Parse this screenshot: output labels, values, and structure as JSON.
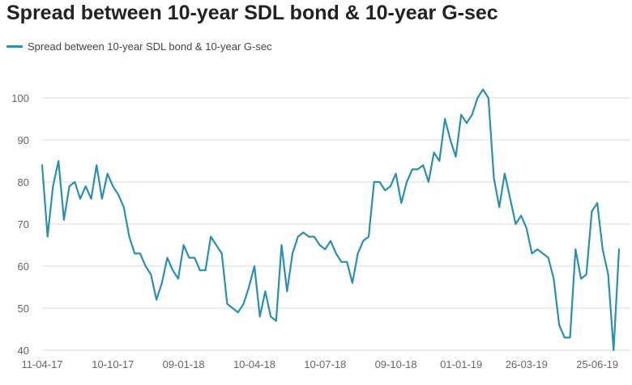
{
  "colors": {
    "series": "#2a8fb0",
    "grid": "#d9d9d9",
    "text": "#222222",
    "tick_text": "#666666"
  },
  "chart_data": {
    "type": "line",
    "title": "Spread between 10-year SDL bond & 10-year G-sec",
    "xlabel": "",
    "ylabel": "",
    "ylim": [
      40,
      100
    ],
    "yticks": [
      40,
      50,
      60,
      70,
      80,
      90,
      100
    ],
    "grid": true,
    "legend": "top-left",
    "x_tick_labels": [
      {
        "label": "11-04-17",
        "index": 0
      },
      {
        "label": "10-10-17",
        "index": 13
      },
      {
        "label": "09-01-18",
        "index": 26
      },
      {
        "label": "10-04-18",
        "index": 39
      },
      {
        "label": "10-07-18",
        "index": 52
      },
      {
        "label": "09-10-18",
        "index": 65
      },
      {
        "label": "01-01-19",
        "index": 77
      },
      {
        "label": "26-03-19",
        "index": 89
      },
      {
        "label": "25-06-19",
        "index": 102
      }
    ],
    "series": [
      {
        "name": "Spread between 10-year SDL bond & 10-year G-sec",
        "values": [
          84,
          67,
          79,
          85,
          71,
          79,
          80,
          76,
          79,
          76,
          84,
          76,
          82,
          79,
          77,
          74,
          67,
          63,
          63,
          60,
          58,
          52,
          56,
          62,
          59,
          57,
          65,
          62,
          62,
          59,
          59,
          67,
          65,
          63,
          51,
          50,
          49,
          51,
          55,
          60,
          48,
          54,
          48,
          47,
          65,
          54,
          63,
          67,
          68,
          67,
          67,
          65,
          64,
          66,
          63,
          61,
          61,
          56,
          63,
          66,
          67,
          80,
          80,
          78,
          79,
          82,
          75,
          80,
          83,
          83,
          84,
          80,
          87,
          85,
          95,
          90,
          86,
          96,
          94,
          96,
          100,
          102,
          100,
          81,
          74,
          82,
          76,
          70,
          72,
          69,
          63,
          64,
          63,
          62,
          57,
          46,
          43,
          43,
          64,
          57,
          58,
          73,
          75,
          64,
          58,
          40,
          64
        ]
      }
    ]
  }
}
